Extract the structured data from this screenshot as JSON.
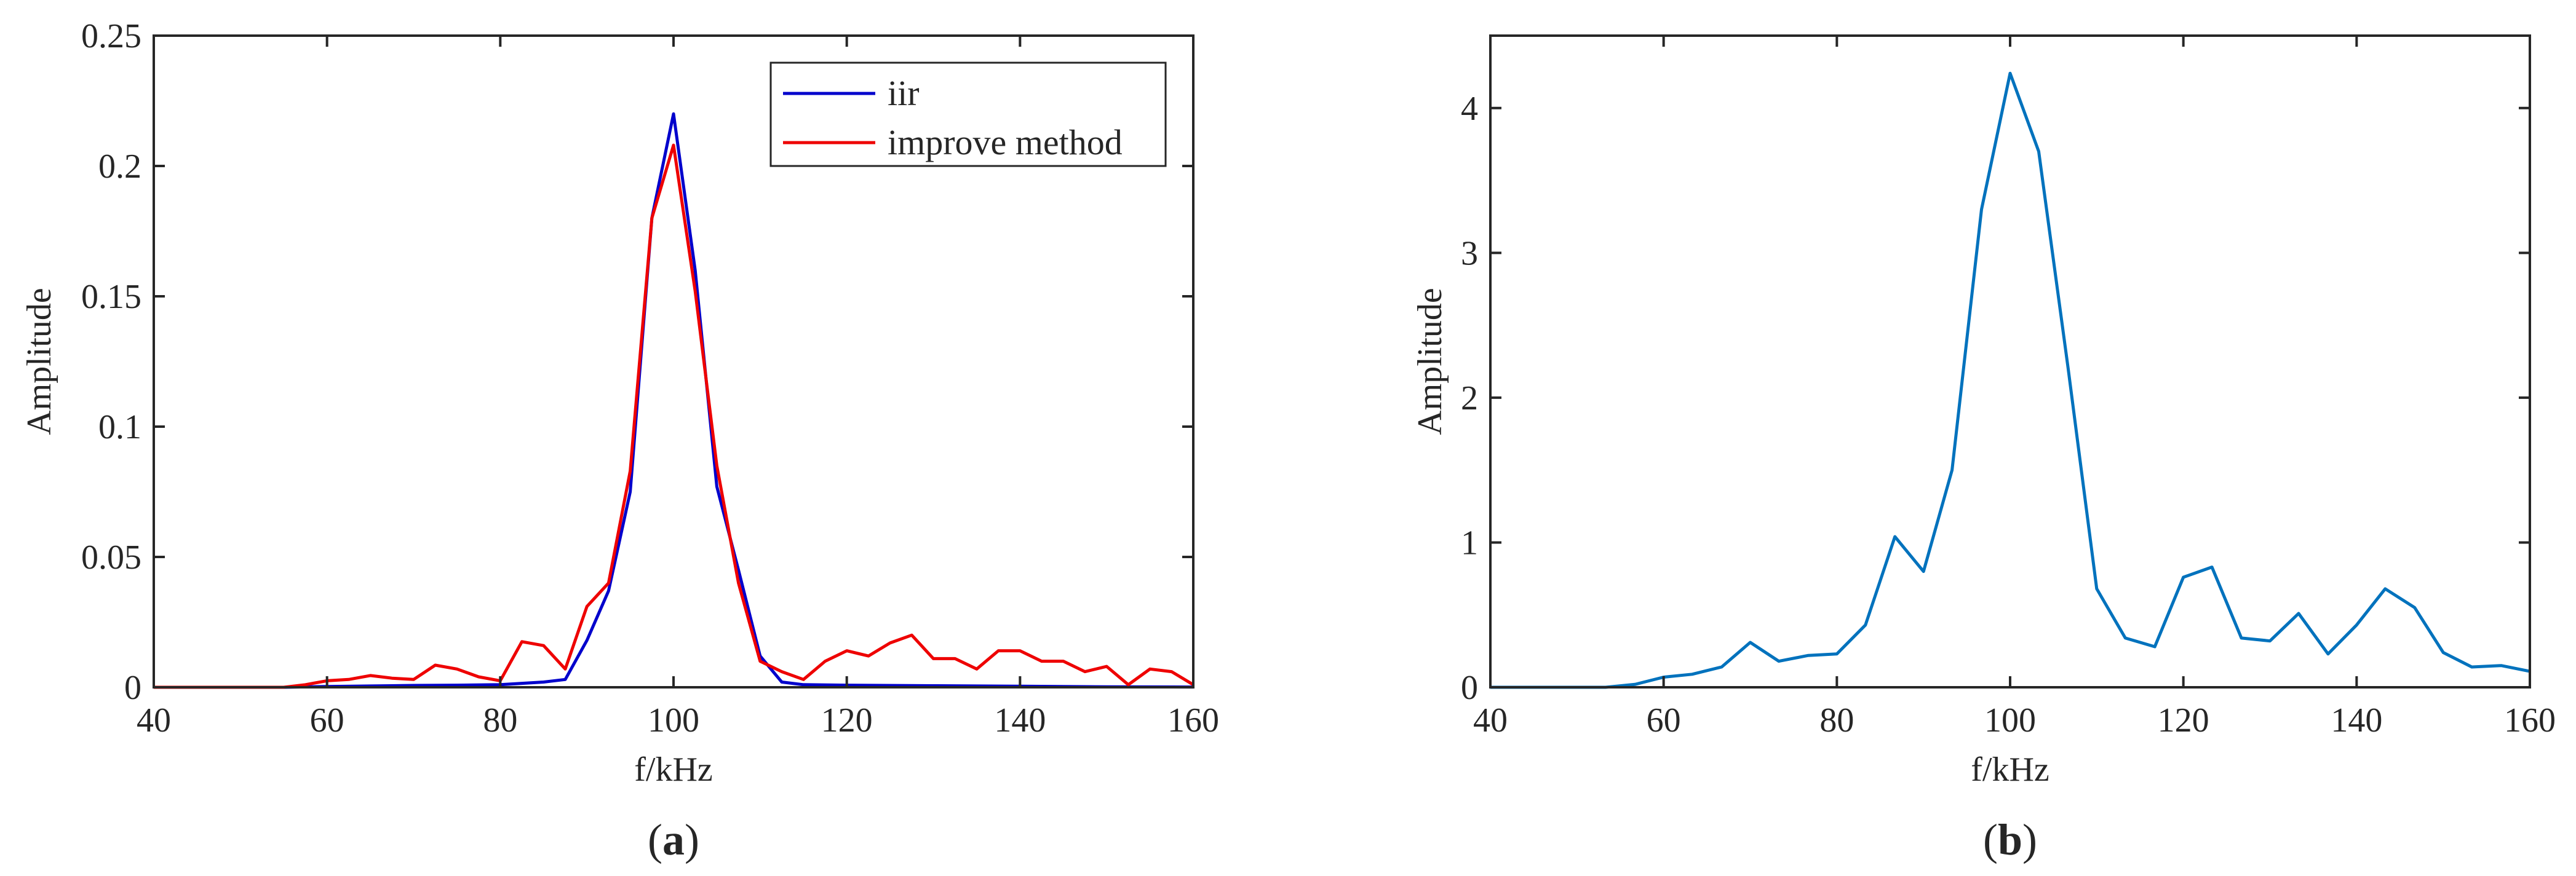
{
  "chart_data": [
    {
      "type": "line",
      "caption": "a",
      "xlabel": "f/kHz",
      "ylabel": "Amplitude",
      "xlim": [
        40,
        160
      ],
      "ylim": [
        0,
        0.25
      ],
      "xticks": [
        "40",
        "60",
        "80",
        "100",
        "120",
        "140",
        "160"
      ],
      "yticks": [
        "0",
        "0.05",
        "0.1",
        "0.15",
        "0.2",
        "0.25"
      ],
      "grid": false,
      "legend": "top-right",
      "series": [
        {
          "name": "iir",
          "color": "#0000CC",
          "x": [
            40,
            45,
            50,
            55,
            60,
            65,
            70,
            75,
            80,
            85,
            87.5,
            90,
            92.5,
            95,
            97.5,
            100,
            102.5,
            105,
            107.5,
            110,
            112.5,
            115,
            120,
            130,
            140,
            150,
            160
          ],
          "y": [
            0,
            0,
            0,
            0,
            0.0003,
            0.0005,
            0.0007,
            0.0008,
            0.001,
            0.002,
            0.003,
            0.018,
            0.037,
            0.075,
            0.18,
            0.22,
            0.16,
            0.077,
            0.045,
            0.012,
            0.002,
            0.001,
            0.0008,
            0.0006,
            0.0004,
            0.0002,
            0.0001
          ]
        },
        {
          "name": "improve method",
          "color": "#EE0000",
          "x": [
            40,
            45,
            50,
            55,
            57.5,
            60,
            62.5,
            65,
            67.5,
            70,
            72.5,
            75,
            77.5,
            80,
            82.5,
            85,
            87.5,
            90,
            92.5,
            95,
            97.5,
            100,
            102.5,
            105,
            107.5,
            110,
            112.5,
            115,
            117.5,
            120,
            122.5,
            125,
            127.5,
            130,
            132.5,
            135,
            137.5,
            140,
            142.5,
            145,
            147.5,
            150,
            152.5,
            155,
            157.5,
            160
          ],
          "y": [
            0,
            0,
            0,
            0,
            0.001,
            0.0025,
            0.003,
            0.0045,
            0.0035,
            0.003,
            0.0085,
            0.007,
            0.004,
            0.0025,
            0.0175,
            0.016,
            0.007,
            0.031,
            0.04,
            0.083,
            0.18,
            0.208,
            0.152,
            0.085,
            0.04,
            0.01,
            0.006,
            0.003,
            0.01,
            0.014,
            0.012,
            0.017,
            0.02,
            0.011,
            0.011,
            0.007,
            0.014,
            0.014,
            0.01,
            0.01,
            0.006,
            0.008,
            0.001,
            0.007,
            0.006,
            0.001
          ]
        }
      ]
    },
    {
      "type": "line",
      "caption": "b",
      "xlabel": "f/kHz",
      "ylabel": "Amplitude",
      "xlim": [
        40,
        160
      ],
      "ylim": [
        0,
        4.5
      ],
      "xticks": [
        "40",
        "60",
        "80",
        "100",
        "120",
        "140",
        "160"
      ],
      "yticks": [
        "0",
        "1",
        "2",
        "3",
        "4"
      ],
      "grid": false,
      "legend": "none",
      "series": [
        {
          "color": "#0072BD",
          "x": [
            40,
            43.3,
            46.7,
            50,
            53.3,
            56.7,
            60,
            63.3,
            66.7,
            70,
            73.3,
            76.7,
            80,
            83.3,
            86.7,
            90,
            93.3,
            96.7,
            100,
            103.3,
            106.7,
            110,
            113.3,
            116.7,
            120,
            123.3,
            126.7,
            130,
            133.3,
            136.7,
            140,
            143.3,
            146.7,
            150,
            153.3,
            156.7,
            160
          ],
          "y": [
            0,
            0,
            0,
            0,
            0,
            0.02,
            0.07,
            0.09,
            0.14,
            0.31,
            0.18,
            0.22,
            0.23,
            0.43,
            1.04,
            0.8,
            1.5,
            3.3,
            4.24,
            3.7,
            2.2,
            0.68,
            0.34,
            0.28,
            0.76,
            0.83,
            0.34,
            0.32,
            0.51,
            0.23,
            0.43,
            0.68,
            0.55,
            0.24,
            0.14,
            0.15,
            0.11
          ]
        }
      ]
    }
  ]
}
